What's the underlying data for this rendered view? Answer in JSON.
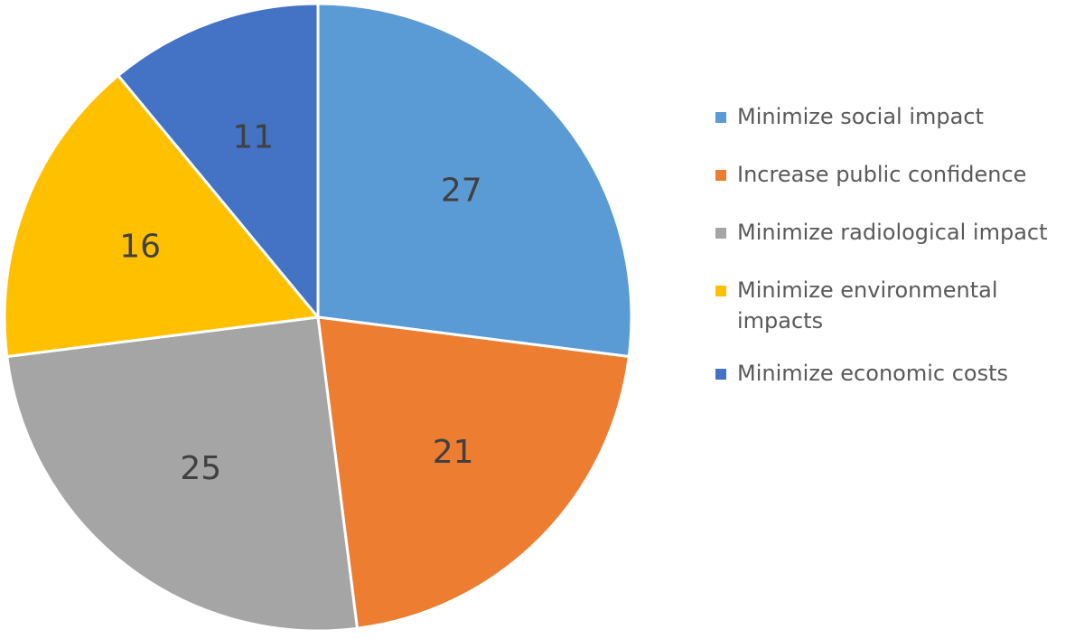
{
  "chart_data": {
    "type": "pie",
    "title": "",
    "categories": [
      "Minimize social impact",
      "Increase public confidence",
      "Minimize radiological impact",
      "Minimize environmental impacts",
      "Minimize economic costs"
    ],
    "values": [
      27,
      21,
      25,
      16,
      11
    ],
    "value_labels": [
      "27",
      "21",
      "25",
      "16",
      "11"
    ],
    "colors": [
      "#5b9bd5",
      "#ed7d31",
      "#a5a5a5",
      "#ffc000",
      "#4472c4"
    ],
    "start_angle_deg": 0,
    "direction": "clockwise",
    "slice_border_color": "#ffffff",
    "legend_position": "right",
    "legend": [
      {
        "label": "Minimize social impact",
        "color": "#5b9bd5"
      },
      {
        "label": "Increase public confidence",
        "color": "#ed7d31"
      },
      {
        "label": "Minimize radiological impact",
        "color": "#a5a5a5"
      },
      {
        "label": "Minimize environmental impacts",
        "color": "#ffc000"
      },
      {
        "label": "Minimize economic costs",
        "color": "#4472c4"
      }
    ]
  }
}
